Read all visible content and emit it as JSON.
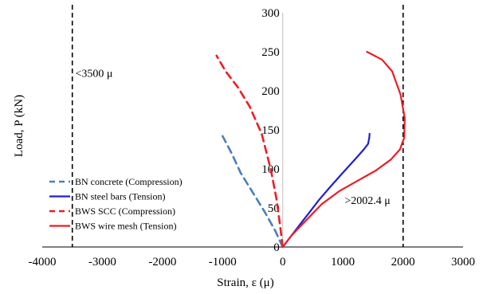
{
  "chart_data": {
    "type": "line",
    "title": "",
    "xlabel": "Strain, ε (μ)",
    "ylabel": "Load, P (kN)",
    "xlim": [
      -4000,
      3000
    ],
    "ylim": [
      0,
      300
    ],
    "x_ticks": [
      -4000,
      -3000,
      -2000,
      -1000,
      0,
      1000,
      2000,
      3000
    ],
    "y_ticks": [
      0,
      50,
      100,
      150,
      200,
      250,
      300
    ],
    "grid": false,
    "legend_position": "bottom-left",
    "reference_lines": [
      {
        "x": -3500,
        "style": "dashed",
        "color": "#000000"
      },
      {
        "x": 2002.4,
        "style": "dashed",
        "color": "#000000"
      }
    ],
    "annotations": [
      {
        "text": "<3500 μ",
        "x": -3450,
        "y": 218
      },
      {
        "text": ">2002.4 μ",
        "x": 1030,
        "y": 55
      }
    ],
    "series": [
      {
        "name": "BN concrete (Compression)",
        "color": "#4a7ebb",
        "style": "dashed",
        "x": [
          0,
          -120,
          -300,
          -500,
          -700,
          -850,
          -1000
        ],
        "y": [
          0,
          20,
          45,
          70,
          95,
          120,
          142
        ]
      },
      {
        "name": "BN steel bars (Tension)",
        "color": "#1f1fd6",
        "style": "solid",
        "x": [
          0,
          150,
          300,
          450,
          600,
          800,
          1000,
          1200,
          1350,
          1420,
          1440,
          1445
        ],
        "y": [
          0,
          15,
          30,
          45,
          60,
          78,
          95,
          112,
          125,
          132,
          140,
          145
        ]
      },
      {
        "name": "BWS SCC (Compression)",
        "color": "#ee1c25",
        "style": "dashed",
        "x": [
          0,
          -40,
          -100,
          -200,
          -350,
          -550,
          -750,
          -950,
          -1100
        ],
        "y": [
          0,
          25,
          60,
          100,
          145,
          180,
          205,
          225,
          245
        ]
      },
      {
        "name": "BWS wire mesh (Tension)",
        "color": "#ee1c25",
        "style": "solid",
        "x": [
          0,
          150,
          400,
          650,
          950,
          1250,
          1550,
          1800,
          1950,
          2020,
          2030,
          1960,
          1820,
          1650,
          1400
        ],
        "y": [
          0,
          15,
          35,
          55,
          72,
          85,
          98,
          112,
          125,
          140,
          165,
          195,
          225,
          240,
          250
        ]
      }
    ]
  }
}
